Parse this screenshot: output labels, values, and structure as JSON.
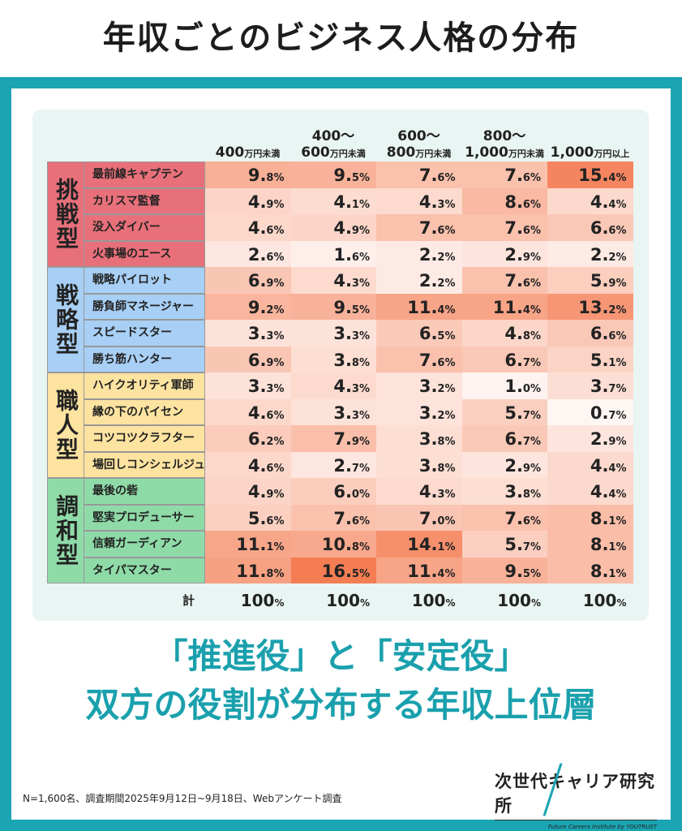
{
  "title": "年収ごとのビジネス人格の分布",
  "headline": {
    "line1": "「推進役」と「安定役」",
    "line2": "双方の役割が分布する年収上位層"
  },
  "note": "N=1,600名、調査期間2025年9月12日~9月18日、Webアンケート調査",
  "logo": {
    "name": "次世代キャリア研究所",
    "sub": "Future Careers Institute by YOUTRUST"
  },
  "colors": {
    "frame": "#1ba4b1",
    "heat_max": "#f47a50",
    "challenge": "#e8707a",
    "strategy": "#a8cff5",
    "craft": "#fde3a0",
    "harmony": "#8fdba8"
  },
  "chart_data": {
    "type": "heatmap",
    "columns": [
      {
        "line1": "",
        "line2": "400",
        "unit": "万円未満"
      },
      {
        "line1": "400～",
        "line2": "600",
        "unit": "万円未満"
      },
      {
        "line1": "600～",
        "line2": "800",
        "unit": "万円未満"
      },
      {
        "line1": "800～",
        "line2": "1,000",
        "unit": "万円未満"
      },
      {
        "line1": "",
        "line2": "1,000",
        "unit": "万円以上"
      }
    ],
    "groups": [
      {
        "label": "挑戦型",
        "color": "#e8707a",
        "rows": [
          {
            "name": "最前線キャプテン",
            "values": [
              9.8,
              9.5,
              7.6,
              7.6,
              15.4
            ]
          },
          {
            "name": "カリスマ監督",
            "values": [
              4.9,
              4.1,
              4.3,
              8.6,
              4.4
            ]
          },
          {
            "name": "没入ダイバー",
            "values": [
              4.6,
              4.9,
              7.6,
              7.6,
              6.6
            ]
          },
          {
            "name": "火事場のエース",
            "values": [
              2.6,
              1.6,
              2.2,
              2.9,
              2.2
            ]
          }
        ]
      },
      {
        "label": "戦略型",
        "color": "#a8cff5",
        "rows": [
          {
            "name": "戦略パイロット",
            "values": [
              6.9,
              4.3,
              2.2,
              7.6,
              5.9
            ]
          },
          {
            "name": "勝負師マネージャー",
            "values": [
              9.2,
              9.5,
              11.4,
              11.4,
              13.2
            ]
          },
          {
            "name": "スピードスター",
            "values": [
              3.3,
              3.3,
              6.5,
              4.8,
              6.6
            ]
          },
          {
            "name": "勝ち筋ハンター",
            "values": [
              6.9,
              3.8,
              7.6,
              6.7,
              5.1
            ]
          }
        ]
      },
      {
        "label": "職人型",
        "color": "#fde3a0",
        "rows": [
          {
            "name": "ハイクオリティ軍師",
            "values": [
              3.3,
              4.3,
              3.2,
              1.0,
              3.7
            ]
          },
          {
            "name": "縁の下のパイセン",
            "values": [
              4.6,
              3.3,
              3.2,
              5.7,
              0.7
            ]
          },
          {
            "name": "コツコツクラフター",
            "values": [
              6.2,
              7.9,
              3.8,
              6.7,
              2.9
            ]
          },
          {
            "name": "場回しコンシェルジュ",
            "values": [
              4.6,
              2.7,
              3.8,
              2.9,
              4.4
            ]
          }
        ]
      },
      {
        "label": "調和型",
        "color": "#8fdba8",
        "rows": [
          {
            "name": "最後の砦",
            "values": [
              4.9,
              6.0,
              4.3,
              3.8,
              4.4
            ]
          },
          {
            "name": "堅実プロデューサー",
            "values": [
              5.6,
              7.6,
              7.0,
              7.6,
              8.1
            ]
          },
          {
            "name": "信頼ガーディアン",
            "values": [
              11.1,
              10.8,
              14.1,
              5.7,
              8.1
            ]
          },
          {
            "name": "タイパマスター",
            "values": [
              11.8,
              16.5,
              11.4,
              9.5,
              8.1
            ]
          }
        ]
      }
    ],
    "total_label": "計",
    "totals": [
      100,
      100,
      100,
      100,
      100
    ],
    "unit": "%"
  }
}
